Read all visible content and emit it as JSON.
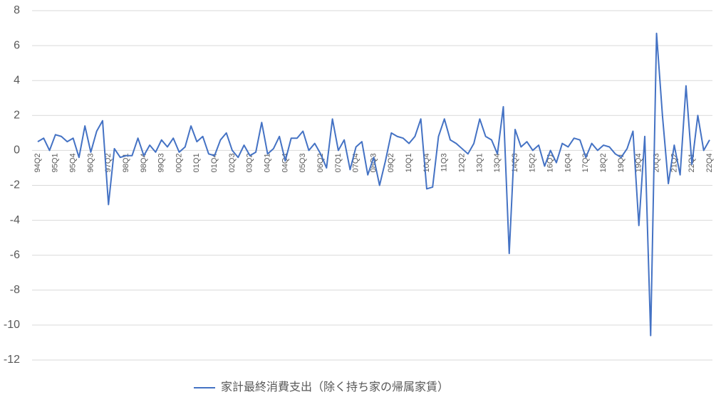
{
  "chart_data": {
    "type": "line",
    "categories": [
      "94Q2",
      null,
      null,
      "95Q1",
      null,
      null,
      "95Q4",
      null,
      null,
      "96Q3",
      null,
      null,
      "97Q2",
      null,
      null,
      "98Q1",
      null,
      null,
      "98Q4",
      null,
      null,
      "99Q3",
      null,
      null,
      "00Q2",
      null,
      null,
      "01Q1",
      null,
      null,
      "01Q4",
      null,
      null,
      "02Q3",
      null,
      null,
      "03Q2",
      null,
      null,
      "04Q1",
      null,
      null,
      "04Q4",
      null,
      null,
      "05Q3",
      null,
      null,
      "06Q2",
      null,
      null,
      "07Q1",
      null,
      null,
      "07Q4",
      null,
      null,
      "08Q3",
      null,
      null,
      "09Q2",
      null,
      null,
      "10Q1",
      null,
      null,
      "10Q4",
      null,
      null,
      "11Q3",
      null,
      null,
      "12Q2",
      null,
      null,
      "13Q1",
      null,
      null,
      "13Q4",
      null,
      null,
      "14Q3",
      null,
      null,
      "15Q2",
      null,
      null,
      "16Q1",
      null,
      null,
      "16Q4",
      null,
      null,
      "17Q3",
      null,
      null,
      "18Q2",
      null,
      null,
      "19Q1",
      null,
      null,
      "19Q4",
      null,
      null,
      "20Q3",
      null,
      null,
      "21Q2",
      null,
      null,
      "22Q1",
      null,
      null,
      "22Q4"
    ],
    "series": [
      {
        "name": "家計最終消費支出（除く持ち家の帰属家賃）",
        "color": "#4472c4",
        "values": [
          0.5,
          0.7,
          0.0,
          0.9,
          0.8,
          0.5,
          0.7,
          -0.4,
          1.4,
          -0.1,
          1.1,
          1.7,
          -3.1,
          0.1,
          -0.4,
          -0.3,
          -0.3,
          0.7,
          -0.3,
          0.3,
          -0.1,
          0.6,
          0.2,
          0.7,
          -0.1,
          0.2,
          1.4,
          0.5,
          0.8,
          -0.2,
          -0.3,
          0.6,
          1.0,
          0.0,
          -0.4,
          0.3,
          -0.3,
          -0.1,
          1.6,
          -0.2,
          0.1,
          0.8,
          -0.6,
          0.7,
          0.7,
          1.1,
          0.0,
          0.4,
          -0.2,
          -1.0,
          1.8,
          0.0,
          0.6,
          -1.1,
          0.2,
          0.5,
          -1.4,
          -0.4,
          -2.0,
          -0.6,
          1.0,
          0.8,
          0.7,
          0.4,
          0.8,
          1.8,
          -2.2,
          -2.1,
          0.8,
          1.8,
          0.6,
          0.4,
          0.1,
          -0.2,
          0.4,
          1.8,
          0.8,
          0.6,
          -0.2,
          2.5,
          -5.9,
          1.2,
          0.2,
          0.5,
          0.0,
          0.3,
          -0.9,
          0.0,
          -0.7,
          0.4,
          0.2,
          0.7,
          0.6,
          -0.4,
          0.4,
          0.0,
          0.3,
          0.2,
          -0.2,
          -0.4,
          0.1,
          1.1,
          -4.3,
          0.8,
          -10.6,
          6.7,
          2.0,
          -1.9,
          0.3,
          -1.4,
          3.7,
          -0.8,
          2.0,
          0.0,
          0.6
        ]
      }
    ],
    "ylim": [
      -12,
      8
    ],
    "yticks": [
      -12,
      -10,
      -8,
      -6,
      -4,
      -2,
      0,
      2,
      4,
      6,
      8
    ],
    "grid": true,
    "legend": "bottom"
  }
}
